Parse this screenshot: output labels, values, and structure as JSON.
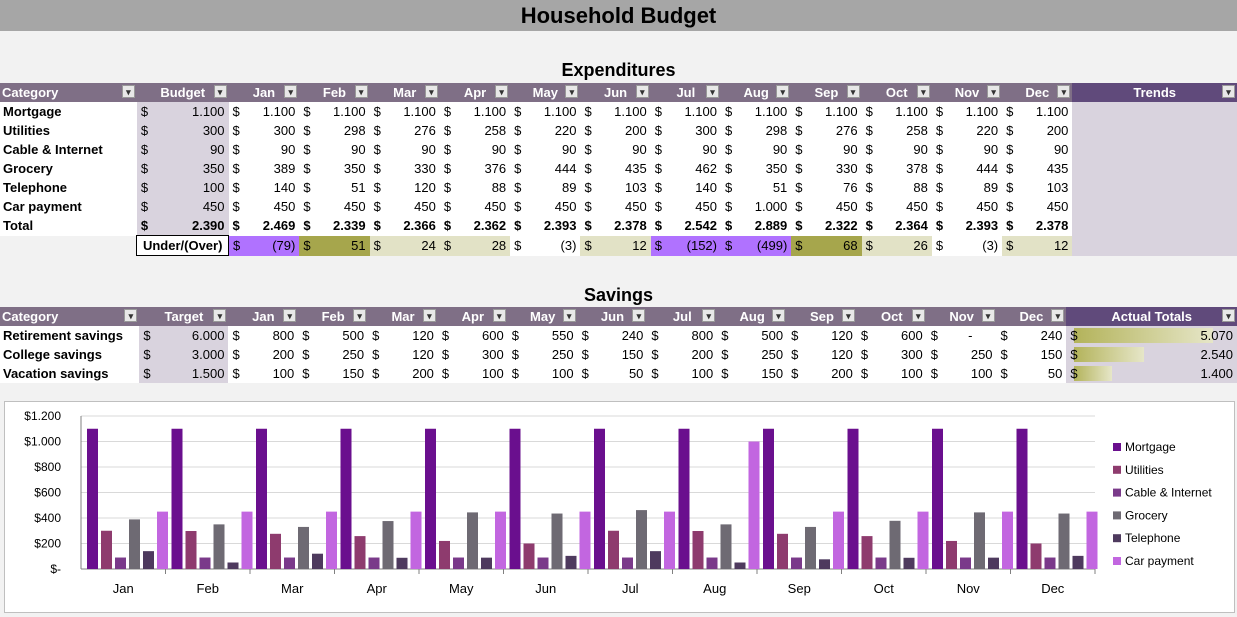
{
  "title": "Household Budget",
  "expenditures": {
    "title": "Expenditures",
    "headers": [
      "Category",
      "Budget",
      "Jan",
      "Feb",
      "Mar",
      "Apr",
      "May",
      "Jun",
      "Jul",
      "Aug",
      "Sep",
      "Oct",
      "Nov",
      "Dec",
      "Trends"
    ],
    "rows": [
      {
        "category": "Mortgage",
        "budget": "1.100",
        "months": [
          "1.100",
          "1.100",
          "1.100",
          "1.100",
          "1.100",
          "1.100",
          "1.100",
          "1.100",
          "1.100",
          "1.100",
          "1.100",
          "1.100"
        ]
      },
      {
        "category": "Utilities",
        "budget": "300",
        "months": [
          "300",
          "298",
          "276",
          "258",
          "220",
          "200",
          "300",
          "298",
          "276",
          "258",
          "220",
          "200"
        ]
      },
      {
        "category": "Cable & Internet",
        "budget": "90",
        "months": [
          "90",
          "90",
          "90",
          "90",
          "90",
          "90",
          "90",
          "90",
          "90",
          "90",
          "90",
          "90"
        ]
      },
      {
        "category": "Grocery",
        "budget": "350",
        "months": [
          "389",
          "350",
          "330",
          "376",
          "444",
          "435",
          "462",
          "350",
          "330",
          "378",
          "444",
          "435"
        ]
      },
      {
        "category": "Telephone",
        "budget": "100",
        "months": [
          "140",
          "51",
          "120",
          "88",
          "89",
          "103",
          "140",
          "51",
          "76",
          "88",
          "89",
          "103"
        ]
      },
      {
        "category": "Car payment",
        "budget": "450",
        "months": [
          "450",
          "450",
          "450",
          "450",
          "450",
          "450",
          "450",
          "1.000",
          "450",
          "450",
          "450",
          "450"
        ]
      }
    ],
    "total": {
      "label": "Total",
      "budget": "2.390",
      "months": [
        "2.469",
        "2.339",
        "2.366",
        "2.362",
        "2.393",
        "2.378",
        "2.542",
        "2.889",
        "2.322",
        "2.364",
        "2.393",
        "2.378"
      ]
    },
    "under_over": {
      "label": "Under/(Over)",
      "values": [
        "(79)",
        "51",
        "24",
        "28",
        "(3)",
        "12",
        "(152)",
        "(499)",
        "68",
        "26",
        "(3)",
        "12"
      ],
      "styles": [
        "neg",
        "olive",
        "light",
        "light",
        "white",
        "light",
        "neg",
        "neg",
        "olive",
        "light",
        "white",
        "light"
      ]
    },
    "currency": "$"
  },
  "savings": {
    "title": "Savings",
    "headers": [
      "Category",
      "Target",
      "Jan",
      "Feb",
      "Mar",
      "Apr",
      "May",
      "Jun",
      "Jul",
      "Aug",
      "Sep",
      "Oct",
      "Nov",
      "Dec",
      "Actual Totals"
    ],
    "rows": [
      {
        "category": "Retirement savings",
        "target": "6.000",
        "months": [
          "800",
          "500",
          "120",
          "600",
          "550",
          "240",
          "800",
          "500",
          "120",
          "600",
          "-",
          "240"
        ],
        "actual": "5.070",
        "actual_fraction": 0.84
      },
      {
        "category": "College savings",
        "target": "3.000",
        "months": [
          "200",
          "250",
          "120",
          "300",
          "250",
          "150",
          "200",
          "250",
          "120",
          "300",
          "250",
          "150"
        ],
        "actual": "2.540",
        "actual_fraction": 0.42
      },
      {
        "category": "Vacation savings",
        "target": "1.500",
        "months": [
          "100",
          "150",
          "200",
          "100",
          "100",
          "50",
          "100",
          "150",
          "200",
          "100",
          "100",
          "50"
        ],
        "actual": "1.400",
        "actual_fraction": 0.23
      }
    ]
  },
  "chart_data": {
    "type": "bar",
    "categories": [
      "Jan",
      "Feb",
      "Mar",
      "Apr",
      "May",
      "Jun",
      "Jul",
      "Aug",
      "Sep",
      "Oct",
      "Nov",
      "Dec"
    ],
    "y_tick_labels": [
      "$-",
      "$200",
      "$400",
      "$600",
      "$800",
      "$1.000",
      "$1.200"
    ],
    "ylim": [
      0,
      1200
    ],
    "legend_position": "right",
    "series": [
      {
        "name": "Mortgage",
        "color": "#6a0f8e",
        "values": [
          1100,
          1100,
          1100,
          1100,
          1100,
          1100,
          1100,
          1100,
          1100,
          1100,
          1100,
          1100
        ]
      },
      {
        "name": "Utilities",
        "color": "#8e3b6e",
        "values": [
          300,
          298,
          276,
          258,
          220,
          200,
          300,
          298,
          276,
          258,
          220,
          200
        ]
      },
      {
        "name": "Cable & Internet",
        "color": "#7a3a8a",
        "values": [
          90,
          90,
          90,
          90,
          90,
          90,
          90,
          90,
          90,
          90,
          90,
          90
        ]
      },
      {
        "name": "Grocery",
        "color": "#6e6a73",
        "values": [
          389,
          350,
          330,
          376,
          444,
          435,
          462,
          350,
          330,
          378,
          444,
          435
        ]
      },
      {
        "name": "Telephone",
        "color": "#4e3a5e",
        "values": [
          140,
          51,
          120,
          88,
          89,
          103,
          140,
          51,
          76,
          88,
          89,
          103
        ]
      },
      {
        "name": "Car payment",
        "color": "#c266e0",
        "values": [
          450,
          450,
          450,
          450,
          450,
          450,
          450,
          1000,
          450,
          450,
          450,
          450
        ]
      }
    ]
  }
}
